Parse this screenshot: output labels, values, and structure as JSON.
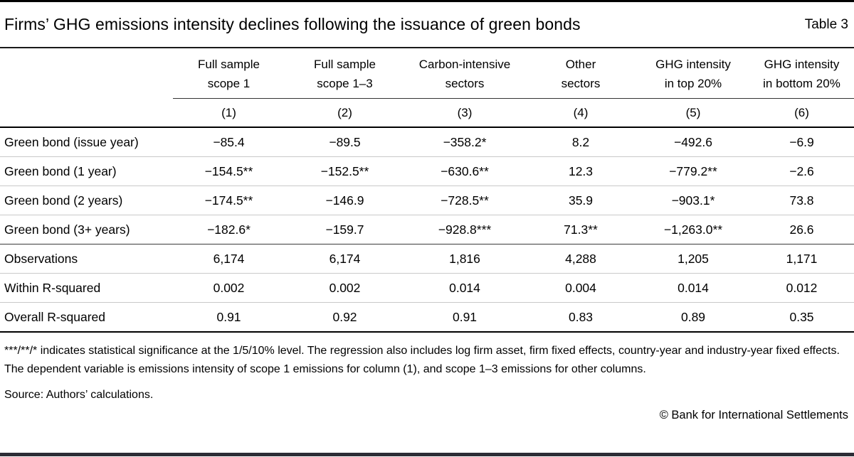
{
  "header": {
    "title": "Firms’ GHG emissions intensity declines following the issuance of green bonds",
    "table_label": "Table 3"
  },
  "table": {
    "columns": [
      {
        "label_line1": "Full sample",
        "label_line2": "scope 1",
        "number": "(1)"
      },
      {
        "label_line1": "Full sample",
        "label_line2": "scope 1–3",
        "number": "(2)"
      },
      {
        "label_line1": "Carbon-intensive",
        "label_line2": "sectors",
        "number": "(3)"
      },
      {
        "label_line1": "Other",
        "label_line2": "sectors",
        "number": "(4)"
      },
      {
        "label_line1": "GHG intensity",
        "label_line2": "in top 20%",
        "number": "(5)"
      },
      {
        "label_line1": "GHG intensity",
        "label_line2": "in bottom 20%",
        "number": "(6)"
      }
    ],
    "rows": [
      {
        "label": "Green bond (issue year)",
        "values": [
          "−85.4",
          "−89.5",
          "−358.2*",
          "8.2",
          "−492.6",
          "−6.9"
        ]
      },
      {
        "label": "Green bond (1 year)",
        "values": [
          "−154.5**",
          "−152.5**",
          "−630.6**",
          "12.3",
          "−779.2**",
          "−2.6"
        ]
      },
      {
        "label": "Green bond (2 years)",
        "values": [
          "−174.5**",
          "−146.9",
          "−728.5**",
          "35.9",
          "−903.1*",
          "73.8"
        ]
      },
      {
        "label": "Green bond (3+ years)",
        "values": [
          "−182.6*",
          "−159.7",
          "−928.8***",
          "71.3**",
          "−1,263.0**",
          "26.6"
        ]
      },
      {
        "label": "Observations",
        "values": [
          "6,174",
          "6,174",
          "1,816",
          "4,288",
          "1,205",
          "1,171"
        ]
      },
      {
        "label": "Within R-squared",
        "values": [
          "0.002",
          "0.002",
          "0.014",
          "0.004",
          "0.014",
          "0.012"
        ]
      },
      {
        "label": "Overall R-squared",
        "values": [
          "0.91",
          "0.92",
          "0.91",
          "0.83",
          "0.89",
          "0.35"
        ]
      }
    ]
  },
  "notes": {
    "significance": "***/**/* indicates statistical significance at the 1/5/10% level. The regression also includes log firm asset, firm fixed effects, country-year and industry-year fixed effects. The dependent variable is emissions intensity of scope 1 emissions for column (1), and scope 1–3 emissions for other columns.",
    "source": "Source: Authors’ calculations.",
    "copyright": "© Bank for International Settlements"
  },
  "colors": {
    "footer_bar": "#2c2c35",
    "rule_dark": "#000000",
    "row_divider": "#c9c9c9"
  }
}
